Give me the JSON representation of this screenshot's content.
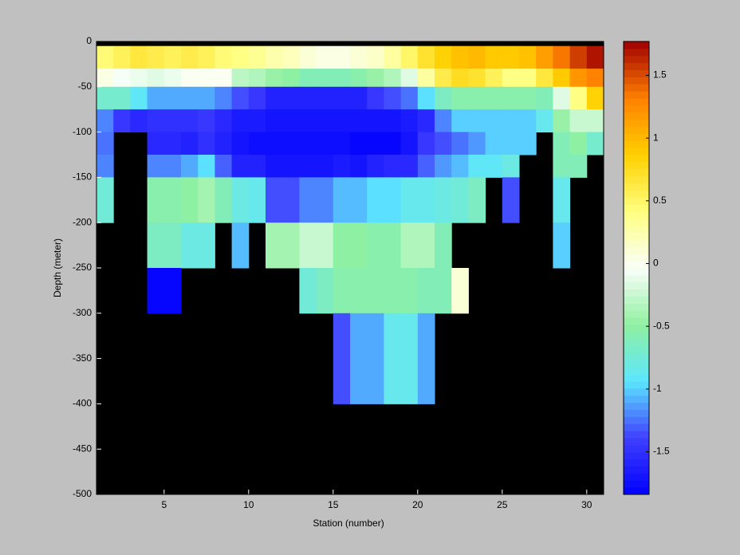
{
  "chart_data": {
    "type": "heatmap",
    "x_label": "Station (number)",
    "y_label": "Depth (meter)",
    "x_edges": [
      1,
      2,
      3,
      4,
      5,
      6,
      7,
      8,
      9,
      10,
      11,
      12,
      13,
      14,
      15,
      16,
      17,
      18,
      19,
      20,
      21,
      22,
      23,
      24,
      25,
      26,
      27,
      28,
      29,
      30,
      31
    ],
    "y_edges": [
      0,
      -5,
      -30,
      -50,
      -75,
      -100,
      -125,
      -150,
      -200,
      -250,
      -300,
      -400,
      -500
    ],
    "values": [
      [
        null,
        null,
        null,
        null,
        null,
        null,
        null,
        null,
        null,
        null,
        null,
        null,
        null,
        null,
        null,
        null,
        null,
        null,
        null,
        null,
        null,
        null,
        null,
        null,
        null,
        null,
        null,
        null,
        null,
        null
      ],
      [
        0.45,
        0.55,
        0.65,
        0.6,
        0.55,
        0.6,
        0.55,
        0.45,
        0.4,
        0.35,
        0.25,
        0.2,
        0.1,
        0.05,
        0.05,
        0.1,
        0.15,
        0.3,
        0.5,
        0.7,
        0.85,
        0.95,
        1.0,
        0.9,
        0.9,
        0.95,
        1.15,
        1.35,
        1.55,
        1.7
      ],
      [
        0.05,
        -0.05,
        -0.1,
        -0.15,
        -0.1,
        0,
        0,
        0,
        -0.3,
        -0.35,
        -0.45,
        -0.5,
        -0.6,
        -0.6,
        -0.6,
        -0.55,
        -0.45,
        -0.35,
        -0.15,
        0.3,
        0.6,
        0.75,
        0.7,
        0.55,
        0.4,
        0.4,
        0.65,
        0.9,
        1.2,
        1.3
      ],
      [
        -0.7,
        -0.7,
        -0.9,
        -1.1,
        -1.1,
        -1.1,
        -1.1,
        -1.2,
        -1.35,
        -1.45,
        -1.6,
        -1.6,
        -1.6,
        -1.6,
        -1.6,
        -1.6,
        -1.45,
        -1.35,
        -1.25,
        -0.95,
        -0.65,
        -0.55,
        -0.55,
        -0.55,
        -0.55,
        -0.55,
        -0.6,
        -0.15,
        0.4,
        0.85
      ],
      [
        -1.2,
        -1.45,
        -1.55,
        -1.5,
        -1.5,
        -1.5,
        -1.45,
        -1.55,
        -1.65,
        -1.65,
        -1.7,
        -1.7,
        -1.7,
        -1.7,
        -1.7,
        -1.7,
        -1.7,
        -1.7,
        -1.65,
        -1.55,
        -1.2,
        -1.0,
        -1.0,
        -1.0,
        -1.0,
        -1.0,
        -0.85,
        -0.45,
        -0.25,
        -0.25
      ],
      [
        -1.25,
        null,
        null,
        -1.55,
        -1.55,
        -1.6,
        -1.5,
        -1.6,
        -1.7,
        -1.75,
        -1.75,
        -1.75,
        -1.75,
        -1.75,
        -1.75,
        -1.8,
        -1.8,
        -1.8,
        -1.7,
        -1.45,
        -1.35,
        -1.25,
        -1.15,
        -1.0,
        -1.0,
        -1.0,
        null,
        -0.6,
        -0.5,
        -0.7
      ],
      [
        -1.2,
        null,
        null,
        -1.2,
        -1.2,
        -1.1,
        -0.95,
        -1.3,
        -1.6,
        -1.6,
        -1.7,
        -1.7,
        -1.7,
        -1.7,
        -1.65,
        -1.7,
        -1.6,
        -1.55,
        -1.55,
        -1.3,
        -1.15,
        -1.05,
        -0.9,
        -0.9,
        -0.8,
        null,
        null,
        -0.6,
        -0.6,
        null
      ],
      [
        -0.75,
        null,
        null,
        -0.55,
        -0.55,
        -0.5,
        -0.4,
        -0.6,
        -0.8,
        -0.85,
        -1.35,
        -1.35,
        -1.2,
        -1.2,
        -1.05,
        -1.05,
        -0.95,
        -0.95,
        -0.85,
        -0.85,
        -0.8,
        -0.75,
        -0.65,
        null,
        -1.35,
        null,
        null,
        -0.85,
        null,
        null
      ],
      [
        null,
        null,
        null,
        -0.65,
        -0.65,
        -0.8,
        -0.8,
        null,
        -1.05,
        null,
        -0.4,
        -0.4,
        -0.25,
        -0.25,
        -0.5,
        -0.5,
        -0.55,
        -0.55,
        -0.35,
        -0.35,
        -0.6,
        null,
        null,
        null,
        null,
        null,
        null,
        -1.0,
        null,
        null
      ],
      [
        null,
        null,
        null,
        -1.8,
        -1.8,
        null,
        null,
        null,
        null,
        null,
        null,
        null,
        -0.75,
        -0.65,
        -0.55,
        -0.55,
        -0.55,
        -0.55,
        -0.55,
        -0.6,
        -0.6,
        0.1,
        null,
        null,
        null,
        null,
        null,
        null,
        null,
        null
      ],
      [
        null,
        null,
        null,
        null,
        null,
        null,
        null,
        null,
        null,
        null,
        null,
        null,
        null,
        null,
        -1.35,
        -1.1,
        -1.1,
        -0.85,
        -0.85,
        -1.1,
        null,
        null,
        null,
        null,
        null,
        null,
        null,
        null,
        null,
        null
      ],
      [
        null,
        null,
        null,
        null,
        null,
        null,
        null,
        null,
        null,
        null,
        null,
        null,
        null,
        null,
        null,
        null,
        null,
        null,
        null,
        null,
        null,
        null,
        null,
        null,
        null,
        null,
        null,
        null,
        null,
        null
      ]
    ],
    "xlim": [
      1,
      31
    ],
    "xticks": [
      5,
      10,
      15,
      20,
      25,
      30
    ],
    "ylim": [
      -500,
      0
    ],
    "yticks": [
      -500,
      -450,
      -400,
      -350,
      -300,
      -250,
      -200,
      -150,
      -100,
      -50,
      0
    ],
    "clim": [
      -1.84,
      1.77
    ],
    "cticks": [
      -1.5,
      -1,
      -0.5,
      0,
      0.5,
      1,
      1.5
    ],
    "colormap": [
      "#0000ff",
      "#4040ff",
      "#5ce6ff",
      "#90f0a0",
      "#fafffa",
      "#ffff80",
      "#ffd000",
      "#ff8000",
      "#a00000"
    ],
    "missing_color": "#000000"
  }
}
